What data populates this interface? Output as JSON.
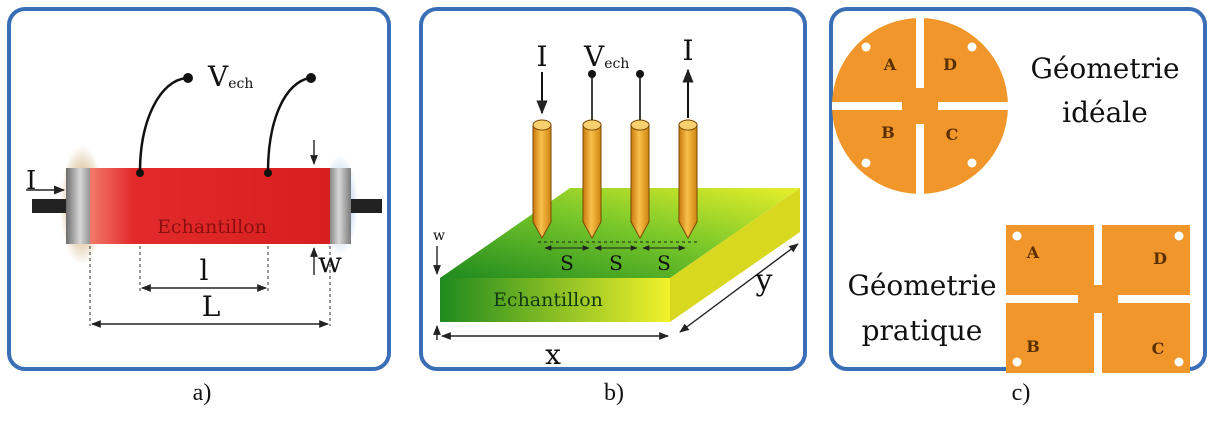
{
  "panels": [
    {
      "id": "a",
      "caption": "a)",
      "labels": {
        "current": "I",
        "voltage_main": "V",
        "voltage_sub": "ech",
        "sample": "Echantillon",
        "inner_length": "l",
        "outer_length": "L",
        "thickness": "w"
      }
    },
    {
      "id": "b",
      "caption": "b)",
      "labels": {
        "current_in": "I",
        "voltage_main": "V",
        "voltage_sub": "ech",
        "current_out": "I",
        "spacing": "S",
        "thickness": "w",
        "sample": "Echantillon",
        "x_dim": "x",
        "y_dim": "y"
      }
    },
    {
      "id": "c",
      "caption": "c)",
      "ideal_title_line1": "Géometrie",
      "ideal_title_line2": "idéale",
      "practical_title_line1": "Géometrie",
      "practical_title_line2": "pratique",
      "contacts": [
        "A",
        "B",
        "C",
        "D"
      ]
    }
  ],
  "colors": {
    "frame": "#3a6fb5",
    "sample_red": "#e02a2a",
    "sample_green": "#2a9a2a",
    "sample_yellow": "#f2f02a",
    "probe": "#f0a21c",
    "vdp_orange": "#f0962a"
  }
}
